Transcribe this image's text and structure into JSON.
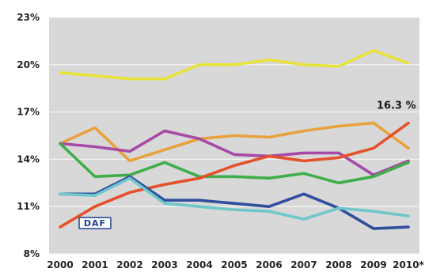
{
  "chart_data": {
    "type": "line",
    "title": "",
    "xlabel": "",
    "ylabel": "",
    "categories": [
      "2000",
      "2001",
      "2002",
      "2003",
      "2004",
      "2005",
      "2006",
      "2007",
      "2008",
      "2009",
      "2010*"
    ],
    "ylim": [
      8,
      23
    ],
    "yticks": [
      "8%",
      "11%",
      "14%",
      "17%",
      "20%",
      "23%"
    ],
    "yticks_values": [
      8,
      11,
      14,
      17,
      20,
      23
    ],
    "grid": "horizontal",
    "background_color": "#d8d8d8",
    "series": [
      {
        "color": "#e8e33a",
        "values": [
          19.5,
          19.3,
          19.1,
          19.1,
          20.0,
          20.0,
          20.3,
          20.0,
          19.9,
          20.9,
          20.1
        ]
      },
      {
        "color": "#e8a23c",
        "values": [
          15.0,
          16.0,
          13.9,
          14.6,
          15.3,
          15.5,
          15.4,
          15.8,
          16.1,
          16.3,
          14.7
        ]
      },
      {
        "color": "#a64aa5",
        "values": [
          15.0,
          14.8,
          14.5,
          15.8,
          15.3,
          14.3,
          14.2,
          14.4,
          14.4,
          13.0,
          13.9
        ]
      },
      {
        "color": "#3fae4a",
        "values": [
          15.0,
          12.9,
          13.0,
          13.8,
          12.9,
          12.9,
          12.8,
          13.1,
          12.5,
          12.9,
          13.8
        ]
      },
      {
        "color": "#e5512b",
        "values": [
          9.7,
          11.0,
          11.9,
          12.4,
          12.8,
          13.6,
          14.2,
          13.9,
          14.1,
          14.7,
          16.3
        ]
      },
      {
        "color": "#2f4f9e",
        "values": [
          11.8,
          11.8,
          12.9,
          11.4,
          11.4,
          11.2,
          11.0,
          11.8,
          10.9,
          9.6,
          9.7
        ]
      },
      {
        "color": "#6fc7c9",
        "values": [
          11.8,
          11.7,
          12.8,
          11.2,
          11.0,
          10.8,
          10.7,
          10.2,
          10.9,
          10.7,
          10.4
        ]
      }
    ],
    "annotations": [
      {
        "text": "16.3 %",
        "x": "2010*",
        "y": 16.3
      }
    ]
  },
  "logo": {
    "text": "DAF",
    "icon": "daf-logo-icon"
  }
}
